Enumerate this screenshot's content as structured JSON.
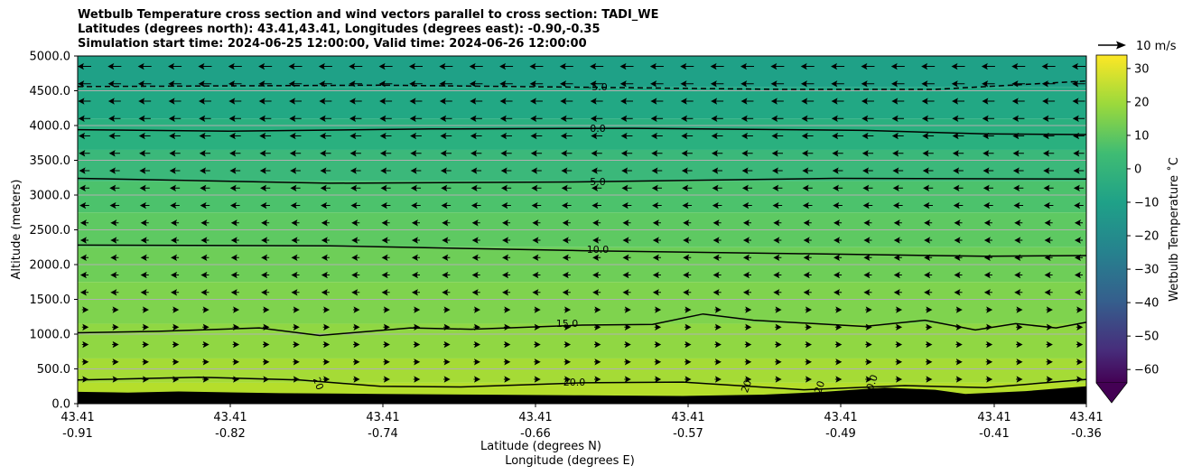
{
  "title_lines": [
    "Wetbulb Temperature cross section and wind vectors parallel to cross section: TADI_WE",
    "Latitudes (degrees north): 43.41,43.41, Longitudes (degrees east): -0.90,-0.35",
    "Simulation start time: 2024-06-25 12:00:00, Valid time: 2024-06-26 12:00:00"
  ],
  "quiver_key": "10 m/s",
  "colorbar_label": "Wetbulb Temperature ˚C",
  "colorbar_ticks": [
    "30",
    "20",
    "10",
    "0",
    "−10",
    "−20",
    "−30",
    "−40",
    "−50",
    "−60"
  ],
  "chart_data": {
    "type": "contour",
    "ylabel": "Altitude (meters)",
    "xlabel_lat": "Latitude (degrees N)",
    "xlabel_lon": "Longitude (degrees E)",
    "ylim": [
      0,
      5000
    ],
    "y_ticks": [
      "0.0",
      "500.0",
      "1000.0",
      "1500.0",
      "2000.0",
      "2500.0",
      "3000.0",
      "3500.0",
      "4000.0",
      "4500.0",
      "5000.0"
    ],
    "x_ticks": [
      {
        "lat": "43.41",
        "lon": "-0.91"
      },
      {
        "lat": "43.41",
        "lon": "-0.82"
      },
      {
        "lat": "43.41",
        "lon": "-0.74"
      },
      {
        "lat": "43.41",
        "lon": "-0.66"
      },
      {
        "lat": "43.41",
        "lon": "-0.57"
      },
      {
        "lat": "43.41",
        "lon": "-0.49"
      },
      {
        "lat": "43.41",
        "lon": "-0.41"
      },
      {
        "lat": "43.41",
        "lon": "-0.36"
      }
    ],
    "colorbar_range": [
      -64,
      34
    ],
    "contour_labels": [
      {
        "label": "-5.0",
        "dashed": true
      },
      {
        "label": "0.0",
        "dashed": false
      },
      {
        "label": "5.0",
        "dashed": false
      },
      {
        "label": "10.0",
        "dashed": false
      },
      {
        "label": "15.0",
        "dashed": false
      },
      {
        "label": "20.0",
        "dashed": false
      }
    ],
    "clipped_contour_labels": [
      "20",
      "20",
      "20",
      "20.0"
    ],
    "grid": "horizontal",
    "terrain_color": "#000000"
  }
}
